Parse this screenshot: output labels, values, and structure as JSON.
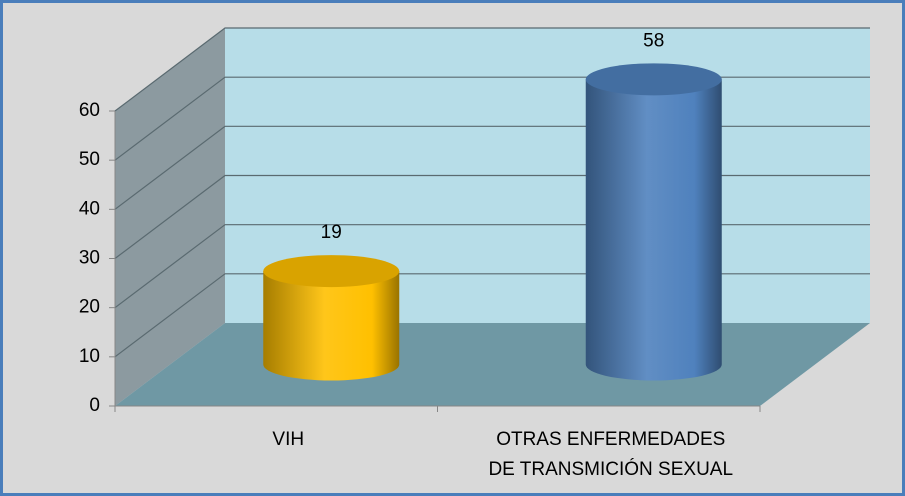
{
  "chart_data": {
    "type": "bar3d",
    "categories": [
      [
        "VIH"
      ],
      [
        "OTRAS ENFERMEDADES",
        "DE TRANSMICIÓN SEXUAL"
      ]
    ],
    "values": [
      19,
      58
    ],
    "colors": [
      "#ffc000",
      "#4f81bd"
    ],
    "ylim": [
      0,
      60
    ],
    "yticks": [
      0,
      10,
      20,
      30,
      40,
      50,
      60
    ],
    "grid": true
  }
}
